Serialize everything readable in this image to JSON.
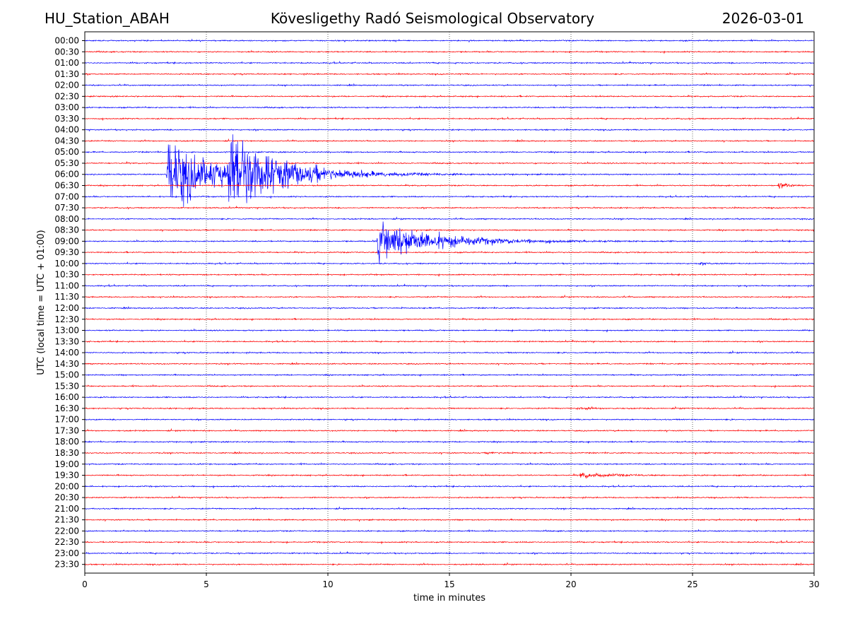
{
  "header": {
    "station": "HU_Station_ABAH",
    "observatory": "Kövesligethy Radó Seismological Observatory",
    "date": "2026-03-01"
  },
  "chart_data": {
    "type": "line",
    "chart_kind": "helicorder",
    "xlabel": "time in minutes",
    "ylabel": "UTC (local time = UTC + 01:00)",
    "xlim": [
      0,
      30
    ],
    "x_ticks": [
      0,
      5,
      10,
      15,
      20,
      25,
      30
    ],
    "row_labels": [
      "00:00",
      "00:30",
      "01:00",
      "01:30",
      "02:00",
      "02:30",
      "03:00",
      "03:30",
      "04:00",
      "04:30",
      "05:00",
      "05:30",
      "06:00",
      "06:30",
      "07:00",
      "07:30",
      "08:00",
      "08:30",
      "09:00",
      "09:30",
      "10:00",
      "10:30",
      "11:00",
      "11:30",
      "12:00",
      "12:30",
      "13:00",
      "13:30",
      "14:00",
      "14:30",
      "15:00",
      "15:30",
      "16:00",
      "16:30",
      "17:00",
      "17:30",
      "18:00",
      "18:30",
      "19:00",
      "19:30",
      "20:00",
      "20:30",
      "21:00",
      "21:30",
      "22:00",
      "22:30",
      "23:00",
      "23:30"
    ],
    "row_colors": [
      "#0000ff",
      "#ff0000"
    ],
    "grid": "vertical dotted lines at each x tick",
    "events": [
      {
        "row": "06:00",
        "onset_min": 3.35,
        "duration_min": 7.5,
        "amplitude_rows": 10,
        "color": "#0000ff"
      },
      {
        "row": "06:00",
        "onset_min": 5.85,
        "duration_min": 8.0,
        "amplitude_rows": 11,
        "color": "#0000ff"
      },
      {
        "row": "09:00",
        "onset_min": 12.0,
        "duration_min": 9.0,
        "amplitude_rows": 6,
        "color": "#0000ff"
      },
      {
        "row": "06:30",
        "onset_min": 28.5,
        "duration_min": 1.5,
        "amplitude_rows": 1,
        "color": "#ff0000"
      },
      {
        "row": "16:30",
        "onset_min": 20.2,
        "duration_min": 2.0,
        "amplitude_rows": 0.4,
        "color": "#ff0000"
      },
      {
        "row": "18:30",
        "onset_min": 16.5,
        "duration_min": 2.5,
        "amplitude_rows": 0.3,
        "color": "#ff0000"
      },
      {
        "row": "19:30",
        "onset_min": 20.3,
        "duration_min": 4.5,
        "amplitude_rows": 0.8,
        "color": "#ff0000"
      },
      {
        "row": "10:00",
        "onset_min": 25.2,
        "duration_min": 1.5,
        "amplitude_rows": 0.3,
        "color": "#0000ff"
      }
    ]
  }
}
